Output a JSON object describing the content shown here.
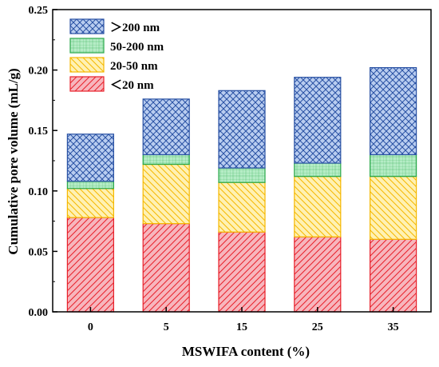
{
  "chart_data": {
    "type": "bar",
    "stacked": true,
    "title": "",
    "xlabel": "MSWIFA content (%)",
    "ylabel": "Cumulative pore volume (mL/g)",
    "categories": [
      "0",
      "5",
      "15",
      "25",
      "35"
    ],
    "ylim": [
      0,
      0.25
    ],
    "yticks": [
      "0.00",
      "0.05",
      "0.10",
      "0.15",
      "0.20",
      "0.25"
    ],
    "legend_position": "top-left",
    "series": [
      {
        "name": "＜20  nm",
        "values": [
          0.078,
          0.073,
          0.066,
          0.062,
          0.06
        ],
        "fill": "#f7b6bd",
        "stroke": "#e8202a",
        "pattern": "diagonal"
      },
      {
        "name": "20-50  nm",
        "values": [
          0.024,
          0.049,
          0.041,
          0.05,
          0.052
        ],
        "fill": "#fff1b3",
        "stroke": "#f5b800",
        "pattern": "backdiagonal"
      },
      {
        "name": "50-200  nm",
        "values": [
          0.006,
          0.008,
          0.012,
          0.011,
          0.018
        ],
        "fill": "#b5ecc6",
        "stroke": "#2aa84a",
        "pattern": "grid"
      },
      {
        "name": "＞200  nm",
        "values": [
          0.039,
          0.046,
          0.064,
          0.071,
          0.072
        ],
        "fill": "#b9cdf0",
        "stroke": "#2a52a4",
        "pattern": "crosshatch"
      }
    ]
  }
}
